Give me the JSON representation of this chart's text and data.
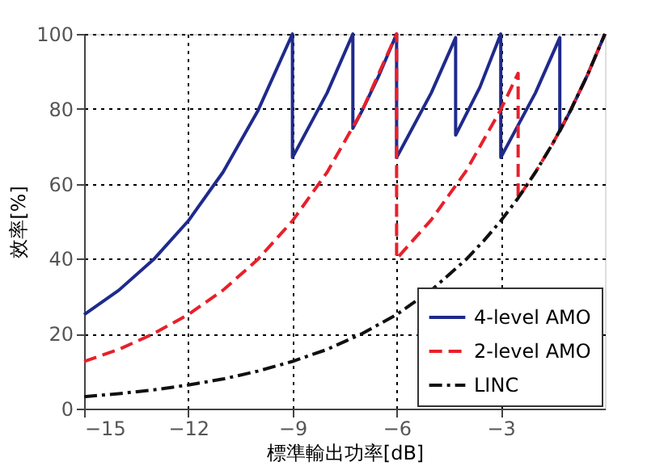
{
  "chart_data": {
    "type": "line",
    "xlabel": "標準輸出功率[dB]",
    "ylabel": "效率[%]",
    "xlim": [
      -15,
      0
    ],
    "ylim": [
      0,
      100
    ],
    "xticks": [
      -15,
      -12,
      -9,
      -6,
      -3
    ],
    "yticks": [
      0,
      20,
      40,
      60,
      80,
      100
    ],
    "grid": true,
    "legend": "bottom right",
    "marker": "none",
    "series": [
      {
        "name": "4-level AMO",
        "color": "#1f2a8c",
        "line_style": "solid",
        "x": [
          -15,
          -14,
          -13,
          -12,
          -11,
          -10,
          -9,
          -9,
          -8,
          -7.26,
          -7.26,
          -7,
          -6.5,
          -6,
          -6,
          -5,
          -4.3,
          -4.3,
          -3.6,
          -3,
          -3,
          -2,
          -1.3,
          -1.3,
          -1,
          -0.5,
          0
        ],
        "values": [
          25.1,
          31.6,
          39.8,
          50.1,
          63.1,
          79.4,
          100,
          67,
          84.3,
          100,
          74.8,
          79.4,
          89.1,
          100,
          67,
          84.3,
          99,
          73,
          85.8,
          100,
          67,
          84.3,
          99,
          74,
          79.4,
          89.1,
          100
        ]
      },
      {
        "name": "2-level AMO",
        "color": "#e8202a",
        "line_style": "dashed",
        "x": [
          -15,
          -14,
          -13,
          -12,
          -11,
          -10,
          -9,
          -8,
          -7,
          -6,
          -6,
          -5,
          -4,
          -3,
          -2.5,
          -2.5,
          -2,
          -1.5,
          -1,
          -0.5,
          0
        ],
        "values": [
          12.6,
          15.8,
          20,
          25.1,
          31.6,
          39.8,
          50.1,
          63.1,
          79.4,
          100,
          40,
          50.4,
          63.4,
          79.8,
          89.5,
          56.2,
          63.1,
          70.8,
          79.4,
          89.1,
          100
        ]
      },
      {
        "name": "LINC",
        "color": "#111111",
        "line_style": "dashdot",
        "x": [
          -15,
          -14,
          -13,
          -12,
          -11,
          -10,
          -9,
          -8,
          -7,
          -6,
          -5,
          -4,
          -3.5,
          -3,
          -2.5,
          -2,
          -1.5,
          -1,
          -0.5,
          0
        ],
        "values": [
          3.2,
          4,
          5,
          6.3,
          7.9,
          10,
          12.6,
          15.8,
          20,
          25.1,
          31.6,
          39.8,
          44.7,
          50.1,
          56.2,
          63.1,
          70.8,
          79.4,
          89.1,
          100
        ]
      }
    ]
  }
}
